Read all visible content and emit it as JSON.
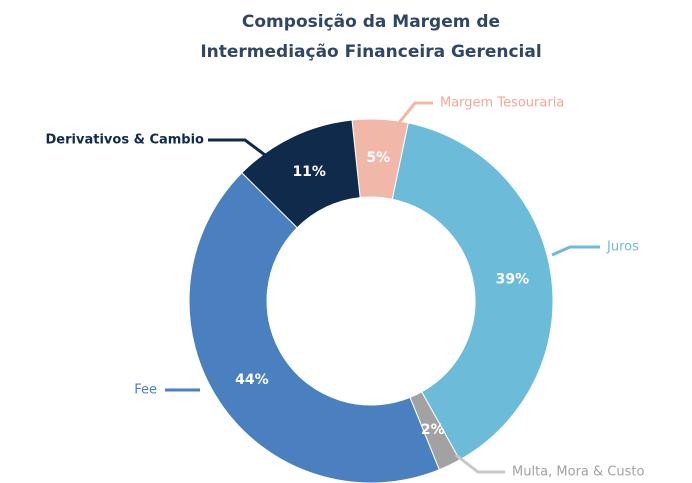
{
  "chart_data": {
    "type": "donut",
    "title": [
      "Composição da Margem de",
      "Intermediação Financeira Gerencial"
    ],
    "categories": [
      "Margem Tesouraria",
      "Juros",
      "Multa, Mora & Custo",
      "Fee",
      "Derivativos & Cambio"
    ],
    "values": [
      5,
      39,
      2,
      44,
      11
    ],
    "value_labels": [
      "5%",
      "39%",
      "2%",
      "44%",
      "11%"
    ],
    "colors": [
      "#f1b8a9",
      "#6cbcd9",
      "#a2a2a2",
      "#4a80bf",
      "#0f2a4a"
    ]
  }
}
